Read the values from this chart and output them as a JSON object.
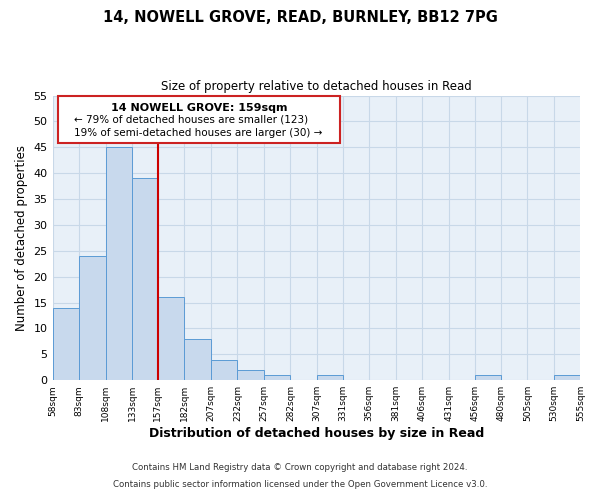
{
  "title": "14, NOWELL GROVE, READ, BURNLEY, BB12 7PG",
  "subtitle": "Size of property relative to detached houses in Read",
  "xlabel": "Distribution of detached houses by size in Read",
  "ylabel": "Number of detached properties",
  "bin_edges": [
    58,
    83,
    108,
    133,
    157,
    182,
    207,
    232,
    257,
    282,
    307,
    331,
    356,
    381,
    406,
    431,
    456,
    480,
    505,
    530,
    555
  ],
  "bin_counts": [
    14,
    24,
    45,
    39,
    16,
    8,
    4,
    2,
    1,
    0,
    1,
    0,
    0,
    0,
    0,
    0,
    1,
    0,
    0,
    1
  ],
  "bar_color": "#c8d9ed",
  "bar_edge_color": "#5b9bd5",
  "vline_x": 157,
  "vline_color": "#cc0000",
  "ylim": [
    0,
    55
  ],
  "yticks": [
    0,
    5,
    10,
    15,
    20,
    25,
    30,
    35,
    40,
    45,
    50,
    55
  ],
  "annotation_box_text_line1": "14 NOWELL GROVE: 159sqm",
  "annotation_box_text_line2": "← 79% of detached houses are smaller (123)",
  "annotation_box_text_line3": "19% of semi-detached houses are larger (30) →",
  "footer_line1": "Contains HM Land Registry data © Crown copyright and database right 2024.",
  "footer_line2": "Contains public sector information licensed under the Open Government Licence v3.0.",
  "grid_color": "#c8d8e8",
  "background_color": "#e8f0f8"
}
